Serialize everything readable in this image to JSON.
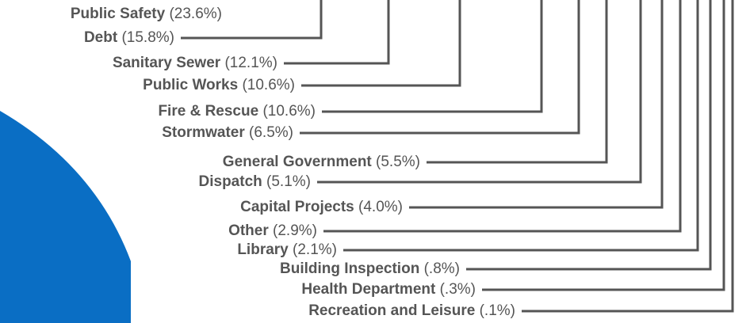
{
  "chart_data": {
    "type": "pie",
    "categories": [
      "Public Safety",
      "Debt",
      "Sanitary Sewer",
      "Public Works",
      "Fire & Rescue",
      "Stormwater",
      "General Government",
      "Dispatch",
      "Capital Projects",
      "Other",
      "Library",
      "Building Inspection",
      "Health Department",
      "Recreation and Leisure"
    ],
    "values": [
      23.6,
      15.8,
      12.1,
      10.6,
      10.6,
      6.5,
      5.5,
      5.1,
      4.0,
      2.9,
      2.1,
      0.8,
      0.3,
      0.1
    ],
    "value_labels": [
      "(23.6%)",
      "(15.8%)",
      "(12.1%)",
      "(10.6%)",
      "(10.6%)",
      "(6.5%)",
      "(5.5%)",
      "(5.1%)",
      "(4.0%)",
      "(2.9%)",
      "(2.1%)",
      "(.8%)",
      "(.3%)",
      "(.1%)"
    ],
    "color": "#0a6ec4"
  }
}
